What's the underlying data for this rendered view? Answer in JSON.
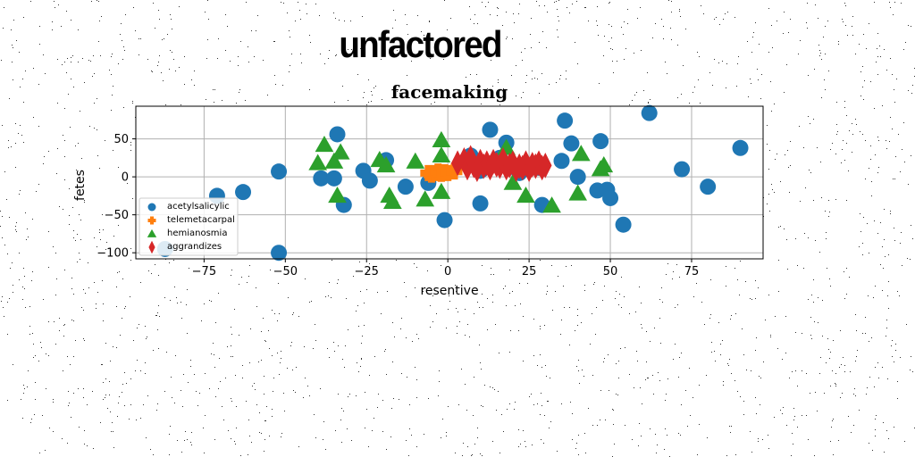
{
  "page": {
    "big_title": "unfactored"
  },
  "chart_data": {
    "type": "scatter",
    "title": "facemaking",
    "xlabel": "resentive",
    "ylabel": "fetes",
    "xlim": [
      -96,
      97
    ],
    "ylim": [
      -108,
      93
    ],
    "xticks": [
      -75,
      -50,
      -25,
      0,
      25,
      50,
      75
    ],
    "yticks": [
      -100,
      -50,
      0,
      50
    ],
    "grid": true,
    "legend": "lower-left",
    "series": [
      {
        "name": "acetylsalicylic",
        "marker": "circle",
        "color": "#1f77b4",
        "points": [
          [
            -87,
            -95
          ],
          [
            -71,
            -25
          ],
          [
            -63,
            -20
          ],
          [
            -52,
            7
          ],
          [
            -52,
            -100
          ],
          [
            -39,
            -2
          ],
          [
            -35,
            -2
          ],
          [
            -34,
            56
          ],
          [
            -32,
            -37
          ],
          [
            -26,
            8
          ],
          [
            -24,
            -5
          ],
          [
            -19,
            22
          ],
          [
            -13,
            -13
          ],
          [
            -6,
            -8
          ],
          [
            -1,
            -57
          ],
          [
            7,
            28
          ],
          [
            10,
            8
          ],
          [
            10,
            -35
          ],
          [
            13,
            62
          ],
          [
            16,
            25
          ],
          [
            18,
            45
          ],
          [
            22,
            5
          ],
          [
            28,
            12
          ],
          [
            29,
            -37
          ],
          [
            35,
            21
          ],
          [
            36,
            74
          ],
          [
            38,
            44
          ],
          [
            40,
            0
          ],
          [
            46,
            -18
          ],
          [
            47,
            47
          ],
          [
            49,
            -17
          ],
          [
            50,
            -28
          ],
          [
            54,
            -63
          ],
          [
            62,
            84
          ],
          [
            72,
            10
          ],
          [
            80,
            -13
          ],
          [
            90,
            38
          ]
        ]
      },
      {
        "name": "telemetacarpal",
        "marker": "plus",
        "color": "#ff7f0e",
        "points": [
          [
            -6,
            5
          ],
          [
            -5,
            3
          ],
          [
            -4,
            5
          ],
          [
            -3,
            7
          ],
          [
            -2,
            4
          ],
          [
            -1,
            6
          ],
          [
            0,
            5
          ],
          [
            2,
            7
          ]
        ]
      },
      {
        "name": "hemianosmia",
        "marker": "triangle",
        "color": "#2ca02c",
        "points": [
          [
            -40,
            18
          ],
          [
            -38,
            42
          ],
          [
            -35,
            20
          ],
          [
            -34,
            -25
          ],
          [
            -33,
            32
          ],
          [
            -21,
            22
          ],
          [
            -19,
            15
          ],
          [
            -18,
            -25
          ],
          [
            -17,
            -33
          ],
          [
            -10,
            20
          ],
          [
            -7,
            -30
          ],
          [
            -2,
            48
          ],
          [
            -2,
            28
          ],
          [
            -2,
            -20
          ],
          [
            18,
            38
          ],
          [
            20,
            -8
          ],
          [
            24,
            -25
          ],
          [
            32,
            -38
          ],
          [
            40,
            -22
          ],
          [
            41,
            30
          ],
          [
            47,
            10
          ],
          [
            48,
            15
          ]
        ]
      },
      {
        "name": "aggrandizes",
        "marker": "diamond",
        "color": "#d62728",
        "points": [
          [
            3,
            18
          ],
          [
            5,
            22
          ],
          [
            6,
            12
          ],
          [
            7,
            25
          ],
          [
            8,
            15
          ],
          [
            9,
            10
          ],
          [
            10,
            20
          ],
          [
            11,
            14
          ],
          [
            12,
            18
          ],
          [
            13,
            12
          ],
          [
            14,
            20
          ],
          [
            15,
            16
          ],
          [
            16,
            14
          ],
          [
            17,
            22
          ],
          [
            18,
            12
          ],
          [
            19,
            15
          ],
          [
            20,
            18
          ],
          [
            21,
            10
          ],
          [
            22,
            14
          ],
          [
            23,
            12
          ],
          [
            24,
            18
          ],
          [
            25,
            10
          ],
          [
            26,
            16
          ],
          [
            27,
            14
          ],
          [
            28,
            18
          ],
          [
            29,
            12
          ],
          [
            30,
            15
          ]
        ]
      }
    ]
  }
}
